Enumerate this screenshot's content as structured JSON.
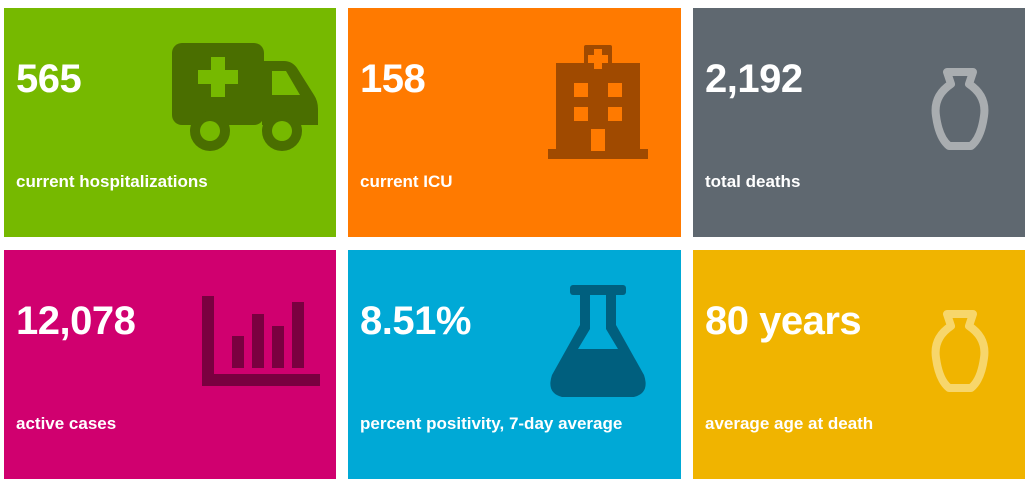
{
  "tiles": [
    {
      "value": "565",
      "label": "current hospitalizations",
      "color": "#76b900",
      "icon": "ambulance-icon"
    },
    {
      "value": "158",
      "label": "current ICU",
      "color": "#ff7a00",
      "icon": "hospital-icon"
    },
    {
      "value": "2,192",
      "label": "total deaths",
      "color": "#5f6870",
      "icon": "urn-icon"
    },
    {
      "value": "12,078",
      "label": "active cases",
      "color": "#d0006f",
      "icon": "bar-chart-icon"
    },
    {
      "value": "8.51%",
      "label": "percent positivity, 7-day average",
      "color": "#00a9d6",
      "icon": "flask-icon"
    },
    {
      "value": "80 years",
      "label": "average age at death",
      "color": "#f0b400",
      "icon": "urn-icon"
    }
  ]
}
